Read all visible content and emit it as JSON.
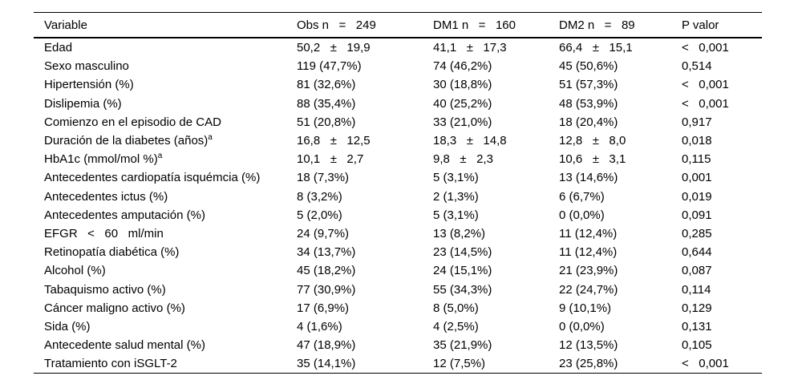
{
  "table": {
    "header": {
      "variable": "Variable",
      "obs": "Obs n   =   249",
      "dm1": "DM1 n   =   160",
      "dm2": "DM2 n   =   89",
      "p": "P valor"
    },
    "rows": [
      {
        "variable": "Edad",
        "sup": "",
        "obs": "50,2   ±   19,9",
        "dm1": "41,1   ±   17,3",
        "dm2": "66,4   ±   15,1",
        "p": "<   0,001"
      },
      {
        "variable": "Sexo masculino",
        "sup": "",
        "obs": "119 (47,7%)",
        "dm1": "74 (46,2%)",
        "dm2": "45 (50,6%)",
        "p": "0,514"
      },
      {
        "variable": "Hipertensión (%)",
        "sup": "",
        "obs": "81 (32,6%)",
        "dm1": "30 (18,8%)",
        "dm2": "51 (57,3%)",
        "p": "<   0,001"
      },
      {
        "variable": "Dislipemia (%)",
        "sup": "",
        "obs": "88 (35,4%)",
        "dm1": "40 (25,2%)",
        "dm2": "48 (53,9%)",
        "p": "<   0,001"
      },
      {
        "variable": "Comienzo en el episodio de CAD",
        "sup": "",
        "obs": "51 (20,8%)",
        "dm1": "33 (21,0%)",
        "dm2": "18 (20,4%)",
        "p": "0,917"
      },
      {
        "variable": "Duración de la diabetes (años)",
        "sup": "a",
        "obs": "16,8   ±   12,5",
        "dm1": "18,3   ±   14,8",
        "dm2": "12,8   ±   8,0",
        "p": "0,018"
      },
      {
        "variable": "HbA1c (mmol/mol %)",
        "sup": "a",
        "obs": "10,1   ±   2,7",
        "dm1": "9,8   ±   2,3",
        "dm2": "10,6   ±   3,1",
        "p": "0,115"
      },
      {
        "variable": "Antecedentes cardiopatía isquémcia (%)",
        "sup": "",
        "obs": "18 (7,3%)",
        "dm1": "5 (3,1%)",
        "dm2": "13 (14,6%)",
        "p": "0,001"
      },
      {
        "variable": "Antecedentes ictus (%)",
        "sup": "",
        "obs": "8 (3,2%)",
        "dm1": "2 (1,3%)",
        "dm2": "6 (6,7%)",
        "p": "0,019"
      },
      {
        "variable": "Antecedentes amputación (%)",
        "sup": "",
        "obs": "5 (2,0%)",
        "dm1": "5 (3,1%)",
        "dm2": "0 (0,0%)",
        "p": "0,091"
      },
      {
        "variable": "EFGR   <   60   ml/min",
        "sup": "",
        "obs": "24 (9,7%)",
        "dm1": "13 (8,2%)",
        "dm2": "11 (12,4%)",
        "p": "0,285"
      },
      {
        "variable": "Retinopatía diabética (%)",
        "sup": "",
        "obs": "34 (13,7%)",
        "dm1": "23 (14,5%)",
        "dm2": "11 (12,4%)",
        "p": "0,644"
      },
      {
        "variable": "Alcohol (%)",
        "sup": "",
        "obs": "45 (18,2%)",
        "dm1": "24 (15,1%)",
        "dm2": "21 (23,9%)",
        "p": "0,087"
      },
      {
        "variable": "Tabaquismo activo (%)",
        "sup": "",
        "obs": "77 (30,9%)",
        "dm1": "55 (34,3%)",
        "dm2": "22 (24,7%)",
        "p": "0,114"
      },
      {
        "variable": "Cáncer maligno activo (%)",
        "sup": "",
        "obs": "17 (6,9%)",
        "dm1": "8 (5,0%)",
        "dm2": "9 (10,1%)",
        "p": "0,129"
      },
      {
        "variable": "Sida (%)",
        "sup": "",
        "obs": "4 (1,6%)",
        "dm1": "4 (2,5%)",
        "dm2": "0 (0,0%)",
        "p": "0,131"
      },
      {
        "variable": "Antecedente salud mental (%)",
        "sup": "",
        "obs": "47 (18,9%)",
        "dm1": "35 (21,9%)",
        "dm2": "12 (13,5%)",
        "p": "0,105"
      },
      {
        "variable": "Tratamiento con iSGLT-2",
        "sup": "",
        "obs": "35 (14,1%)",
        "dm1": "12 (7,5%)",
        "dm2": "23 (25,8%)",
        "p": "<   0,001"
      }
    ]
  }
}
